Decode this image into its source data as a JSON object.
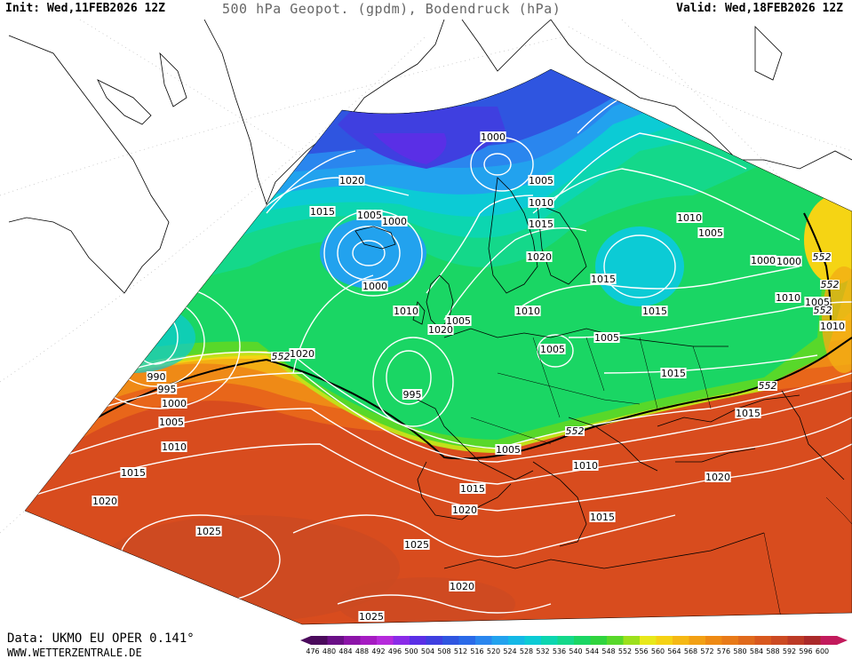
{
  "header": {
    "init": "Init: Wed,11FEB2026 12Z",
    "title": "500 hPa Geopot. (gpdm), Bodendruck (hPa)",
    "valid": "Valid: Wed,18FEB2026 12Z"
  },
  "footer": {
    "data_source": "Data: UKMO EU OPER 0.141°",
    "website": "WWW.WETTERZENTRALE.DE"
  },
  "legend": {
    "values": [
      "476",
      "480",
      "484",
      "488",
      "492",
      "496",
      "500",
      "504",
      "508",
      "512",
      "516",
      "520",
      "524",
      "528",
      "532",
      "536",
      "540",
      "544",
      "548",
      "552",
      "556",
      "560",
      "564",
      "568",
      "572",
      "576",
      "580",
      "584",
      "588",
      "592",
      "596",
      "600"
    ],
    "colors": [
      "#4b0a5c",
      "#6a0f86",
      "#8c14a8",
      "#a51bc2",
      "#b52adb",
      "#8a2be8",
      "#5a2fe6",
      "#3f3fe0",
      "#2f55e0",
      "#2a6ae8",
      "#2a86ee",
      "#22a2ee",
      "#14b8e6",
      "#0ccbd5",
      "#0cd6b0",
      "#14d88a",
      "#1ad664",
      "#30d43e",
      "#58d82a",
      "#9ce01c",
      "#e8e81a",
      "#f5d214",
      "#f5b814",
      "#f2a014",
      "#ee8a14",
      "#e87a18",
      "#e06a1c",
      "#d8581e",
      "#cc4a22",
      "#bc3a26",
      "#aa2a2a",
      "#c21a5c"
    ]
  },
  "map_labels": {
    "contours": [
      "1000",
      "1020",
      "1015",
      "1005",
      "1000",
      "1005",
      "1010",
      "1015",
      "1020",
      "1010",
      "1005",
      "1000",
      "1000",
      "1010",
      "1005",
      "1020",
      "1015",
      "1010",
      "1005",
      "1015",
      "1010",
      "1000",
      "1005",
      "1010",
      "1005",
      "990",
      "995",
      "1000",
      "1005",
      "1010",
      "1015",
      "1020",
      "995",
      "1020",
      "1005",
      "1010",
      "1015",
      "1015",
      "1020",
      "1015",
      "1020",
      "1025",
      "1025",
      "1020",
      "1025",
      "1015"
    ],
    "geopotential_552": [
      "552",
      "552",
      "552",
      "552",
      "552",
      "552"
    ]
  }
}
